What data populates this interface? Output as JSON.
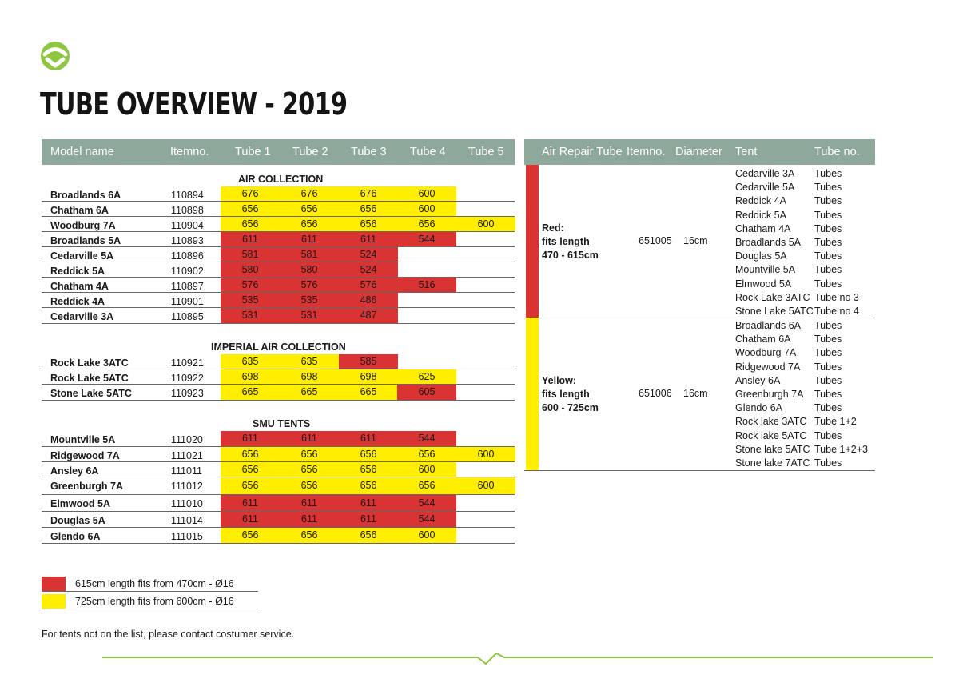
{
  "title": "TUBE OVERVIEW - 2019",
  "colors": {
    "red": "#d93333",
    "yellow": "#ffee00",
    "header": "#8fa89c",
    "brand": "#8dc63f"
  },
  "left_table": {
    "headers": [
      "Model name",
      "Itemno.",
      "Tube 1",
      "Tube 2",
      "Tube 3",
      "Tube 4",
      "Tube 5"
    ],
    "sections": [
      {
        "title": "AIR COLLECTION",
        "rows": [
          {
            "name": "Broadlands 6A",
            "item": "110894",
            "tubes": [
              [
                "676",
                "yellow"
              ],
              [
                "676",
                "yellow"
              ],
              [
                "676",
                "yellow"
              ],
              [
                "600",
                "yellow"
              ],
              [
                "",
                ""
              ]
            ]
          },
          {
            "name": "Chatham 6A",
            "item": "110898",
            "tubes": [
              [
                "656",
                "yellow"
              ],
              [
                "656",
                "yellow"
              ],
              [
                "656",
                "yellow"
              ],
              [
                "600",
                "yellow"
              ],
              [
                "",
                ""
              ]
            ]
          },
          {
            "name": "Woodburg 7A",
            "item": "110904",
            "tubes": [
              [
                "656",
                "yellow"
              ],
              [
                "656",
                "yellow"
              ],
              [
                "656",
                "yellow"
              ],
              [
                "656",
                "yellow"
              ],
              [
                "600",
                "yellow"
              ]
            ]
          },
          {
            "name": "Broadlands 5A",
            "item": "110893",
            "tubes": [
              [
                "611",
                "red"
              ],
              [
                "611",
                "red"
              ],
              [
                "611",
                "red"
              ],
              [
                "544",
                "red"
              ],
              [
                "",
                ""
              ]
            ]
          },
          {
            "name": "Cedarville 5A",
            "item": "110896",
            "tubes": [
              [
                "581",
                "red"
              ],
              [
                "581",
                "red"
              ],
              [
                "524",
                "red"
              ],
              [
                "",
                ""
              ],
              [
                "",
                ""
              ]
            ]
          },
          {
            "name": "Reddick 5A",
            "item": "110902",
            "tubes": [
              [
                "580",
                "red"
              ],
              [
                "580",
                "red"
              ],
              [
                "524",
                "red"
              ],
              [
                "",
                ""
              ],
              [
                "",
                ""
              ]
            ]
          },
          {
            "name": "Chatham 4A",
            "item": "110897",
            "tubes": [
              [
                "576",
                "red"
              ],
              [
                "576",
                "red"
              ],
              [
                "576",
                "red"
              ],
              [
                "516",
                "red"
              ],
              [
                "",
                ""
              ]
            ]
          },
          {
            "name": "Reddick 4A",
            "item": "110901",
            "tubes": [
              [
                "535",
                "red"
              ],
              [
                "535",
                "red"
              ],
              [
                "486",
                "red"
              ],
              [
                "",
                ""
              ],
              [
                "",
                ""
              ]
            ]
          },
          {
            "name": "Cedarville 3A",
            "item": "110895",
            "tubes": [
              [
                "531",
                "red"
              ],
              [
                "531",
                "red"
              ],
              [
                "487",
                "red"
              ],
              [
                "",
                ""
              ],
              [
                "",
                ""
              ]
            ]
          }
        ]
      },
      {
        "title": "IMPERIAL AIR COLLECTION",
        "rows": [
          {
            "name": "Rock Lake 3ATC",
            "item": "110921",
            "tubes": [
              [
                "635",
                "yellow"
              ],
              [
                "635",
                "yellow"
              ],
              [
                "585",
                "red"
              ],
              [
                "",
                ""
              ],
              [
                "",
                ""
              ]
            ]
          },
          {
            "name": "Rock Lake 5ATC",
            "item": "110922",
            "tubes": [
              [
                "698",
                "yellow"
              ],
              [
                "698",
                "yellow"
              ],
              [
                "698",
                "yellow"
              ],
              [
                "625",
                "yellow"
              ],
              [
                "",
                ""
              ]
            ]
          },
          {
            "name": "Stone Lake 5ATC",
            "item": "110923",
            "tubes": [
              [
                "665",
                "yellow"
              ],
              [
                "665",
                "yellow"
              ],
              [
                "665",
                "yellow"
              ],
              [
                "605",
                "red"
              ],
              [
                "",
                ""
              ]
            ]
          }
        ]
      },
      {
        "title": "SMU TENTS",
        "rows": [
          {
            "name": "Mountville 5A",
            "item": "111020",
            "tubes": [
              [
                "611",
                "red"
              ],
              [
                "611",
                "red"
              ],
              [
                "611",
                "red"
              ],
              [
                "544",
                "red"
              ],
              [
                "",
                ""
              ]
            ]
          },
          {
            "name": "Ridgewood 7A",
            "item": "111021",
            "tubes": [
              [
                "656",
                "yellow"
              ],
              [
                "656",
                "yellow"
              ],
              [
                "656",
                "yellow"
              ],
              [
                "656",
                "yellow"
              ],
              [
                "600",
                "yellow"
              ]
            ]
          },
          {
            "name": "Ansley 6A",
            "item": "111011",
            "tubes": [
              [
                "656",
                "yellow"
              ],
              [
                "656",
                "yellow"
              ],
              [
                "656",
                "yellow"
              ],
              [
                "600",
                "yellow"
              ],
              [
                "",
                ""
              ]
            ]
          },
          {
            "name": "Greenburgh 7A",
            "item": "111012",
            "tubes": [
              [
                "656",
                "yellow"
              ],
              [
                "656",
                "yellow"
              ],
              [
                "656",
                "yellow"
              ],
              [
                "656",
                "yellow"
              ],
              [
                "600",
                "yellow"
              ]
            ]
          },
          {
            "name": "Elmwood 5A",
            "item": "111010",
            "tubes": [
              [
                "611",
                "red"
              ],
              [
                "611",
                "red"
              ],
              [
                "611",
                "red"
              ],
              [
                "544",
                "red"
              ],
              [
                "",
                ""
              ]
            ]
          },
          {
            "name": "Douglas 5A",
            "item": "111014",
            "tubes": [
              [
                "611",
                "red"
              ],
              [
                "611",
                "red"
              ],
              [
                "611",
                "red"
              ],
              [
                "544",
                "red"
              ],
              [
                "",
                ""
              ]
            ]
          },
          {
            "name": "Glendo 6A",
            "item": "111015",
            "tubes": [
              [
                "656",
                "yellow"
              ],
              [
                "656",
                "yellow"
              ],
              [
                "656",
                "yellow"
              ],
              [
                "600",
                "yellow"
              ],
              [
                "",
                ""
              ]
            ]
          }
        ]
      }
    ]
  },
  "right_table": {
    "headers": [
      "Air Repair Tube",
      "Itemno.",
      "Diameter",
      "Tent",
      "Tube no."
    ],
    "groups": [
      {
        "color": "red",
        "desc": [
          "Red:",
          "fits length",
          "470 - 615cm"
        ],
        "item": "651005",
        "diameter": "16cm",
        "tents": [
          [
            "Cedarville 3A",
            "Tubes"
          ],
          [
            "Cedarville 5A",
            "Tubes"
          ],
          [
            "Reddick 4A",
            "Tubes"
          ],
          [
            "Reddick 5A",
            "Tubes"
          ],
          [
            "Chatham 4A",
            "Tubes"
          ],
          [
            "Broadlands 5A",
            "Tubes"
          ],
          [
            "Douglas 5A",
            "Tubes"
          ],
          [
            "Mountville 5A",
            "Tubes"
          ],
          [
            "Elmwood 5A",
            "Tubes"
          ],
          [
            "Rock Lake 3ATC",
            "Tube no 3"
          ],
          [
            "Stone Lake 5ATC",
            "Tube no 4"
          ]
        ]
      },
      {
        "color": "yellow",
        "desc": [
          "Yellow:",
          "fits length",
          "600 - 725cm"
        ],
        "item": "651006",
        "diameter": "16cm",
        "tents": [
          [
            "Broadlands 6A",
            "Tubes"
          ],
          [
            "Chatham 6A",
            "Tubes"
          ],
          [
            "Woodburg 7A",
            "Tubes"
          ],
          [
            "Ridgewood 7A",
            "Tubes"
          ],
          [
            "Ansley 6A",
            "Tubes"
          ],
          [
            "Greenburgh 7A",
            "Tubes"
          ],
          [
            "Glendo 6A",
            "Tubes"
          ],
          [
            "Rock lake 3ATC",
            "Tube 1+2"
          ],
          [
            "Rock lake 5ATC",
            "Tubes"
          ],
          [
            "Stone lake 5ATC",
            "Tube 1+2+3"
          ],
          [
            "Stone lake 7ATC",
            "Tubes"
          ]
        ]
      }
    ]
  },
  "legend": [
    {
      "color": "red",
      "text": "615cm length fits from 470cm - Ø16"
    },
    {
      "color": "yellow",
      "text": "725cm length fits from 600cm - Ø16"
    }
  ],
  "footer": "For tents not on the list, please contact costumer service."
}
